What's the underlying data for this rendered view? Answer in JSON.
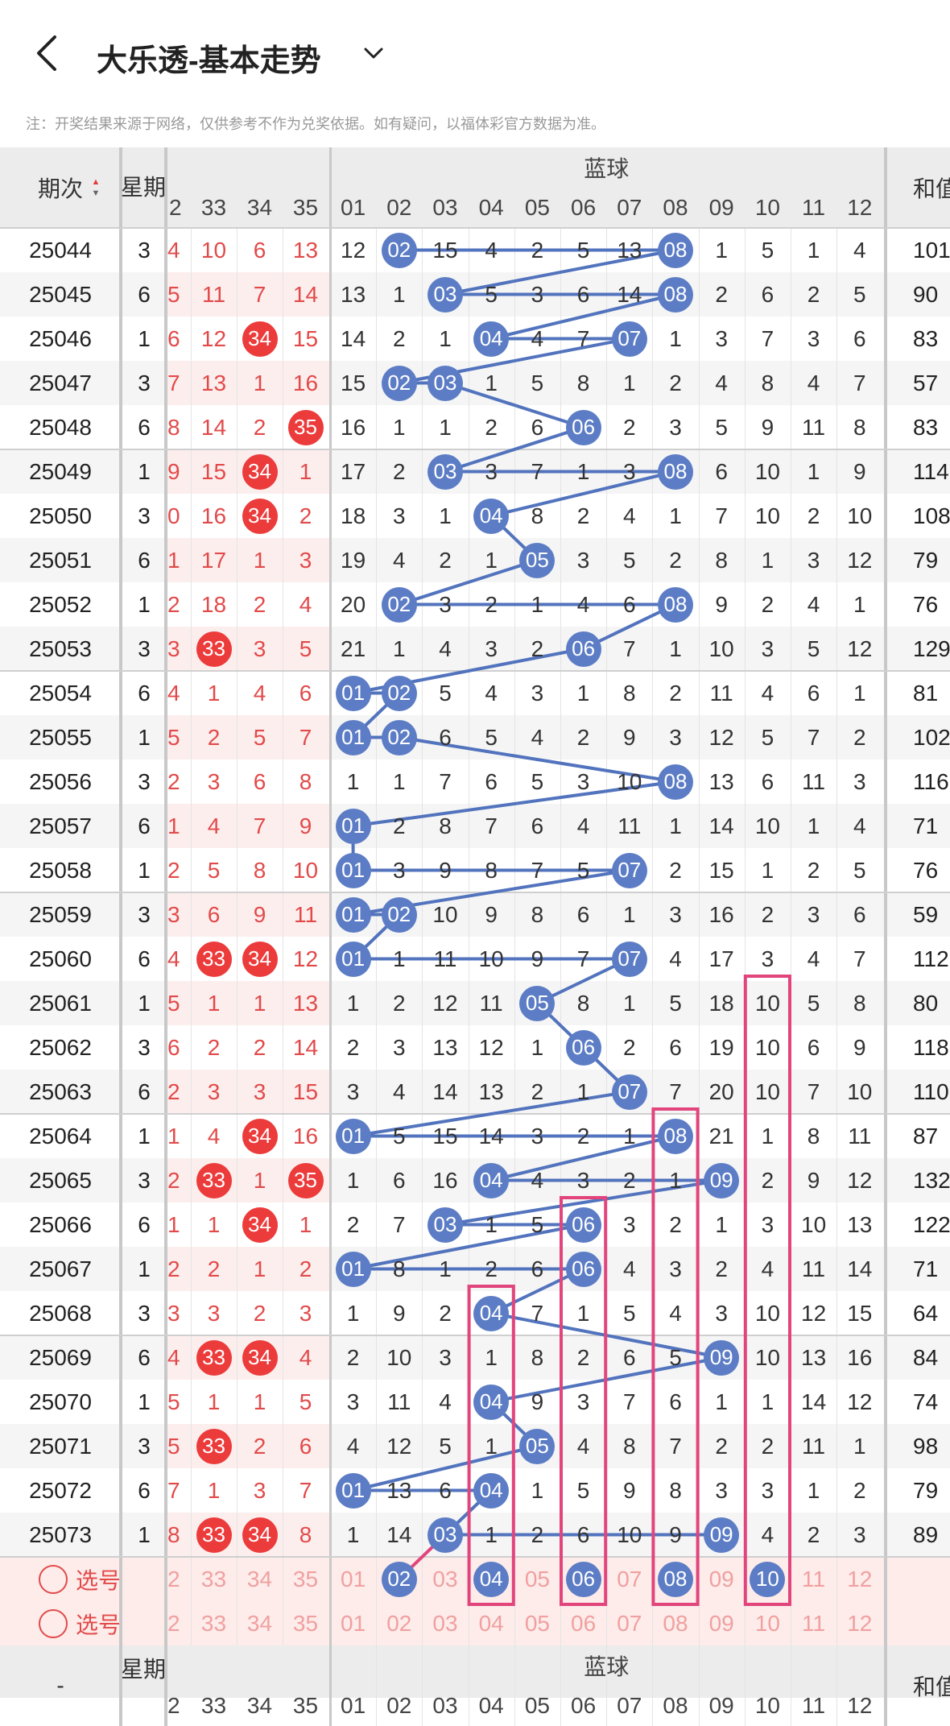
{
  "title": "大乐透-基本走势",
  "note": "注：开奖结果来源于网络，仅供参考不作为兑奖依据。如有疑问，以福体彩官方数据为准。",
  "headers": {
    "period": "期次",
    "weekday": "星期",
    "blue_group": "蓝球",
    "sum": "和值",
    "red_cols": [
      "2",
      "33",
      "34",
      "35"
    ],
    "blue_cols": [
      "01",
      "02",
      "03",
      "04",
      "05",
      "06",
      "07",
      "08",
      "09",
      "10",
      "11",
      "12"
    ]
  },
  "rows": [
    {
      "period": "25044",
      "week": "3",
      "red": [
        "4",
        "10",
        "6",
        "13"
      ],
      "blue": [
        "12",
        "02",
        "15",
        "4",
        "2",
        "5",
        "13",
        "08",
        "1",
        "5",
        "1",
        "4"
      ],
      "sum": "101"
    },
    {
      "period": "25045",
      "week": "6",
      "red": [
        "5",
        "11",
        "7",
        "14"
      ],
      "blue": [
        "13",
        "1",
        "03",
        "5",
        "3",
        "6",
        "14",
        "08",
        "2",
        "6",
        "2",
        "5"
      ],
      "sum": "90"
    },
    {
      "period": "25046",
      "week": "1",
      "red": [
        "6",
        "12",
        "34",
        "15"
      ],
      "blue": [
        "14",
        "2",
        "1",
        "04",
        "4",
        "7",
        "07",
        "1",
        "3",
        "7",
        "3",
        "6"
      ],
      "sum": "83"
    },
    {
      "period": "25047",
      "week": "3",
      "red": [
        "7",
        "13",
        "1",
        "16"
      ],
      "blue": [
        "15",
        "02",
        "03",
        "1",
        "5",
        "8",
        "1",
        "2",
        "4",
        "8",
        "4",
        "7"
      ],
      "sum": "57"
    },
    {
      "period": "25048",
      "week": "6",
      "red": [
        "8",
        "14",
        "2",
        "35"
      ],
      "blue": [
        "16",
        "1",
        "1",
        "2",
        "6",
        "06",
        "2",
        "3",
        "5",
        "9",
        "11",
        "8"
      ],
      "sum": "83"
    },
    {
      "period": "25049",
      "week": "1",
      "red": [
        "9",
        "15",
        "34",
        "1"
      ],
      "blue": [
        "17",
        "2",
        "03",
        "3",
        "7",
        "1",
        "3",
        "08",
        "6",
        "10",
        "1",
        "9"
      ],
      "sum": "114"
    },
    {
      "period": "25050",
      "week": "3",
      "red": [
        "0",
        "16",
        "34",
        "2"
      ],
      "blue": [
        "18",
        "3",
        "1",
        "04",
        "8",
        "2",
        "4",
        "1",
        "7",
        "10",
        "2",
        "10"
      ],
      "sum": "108"
    },
    {
      "period": "25051",
      "week": "6",
      "red": [
        "1",
        "17",
        "1",
        "3"
      ],
      "blue": [
        "19",
        "4",
        "2",
        "1",
        "05",
        "3",
        "5",
        "2",
        "8",
        "1",
        "3",
        "12"
      ],
      "sum": "79"
    },
    {
      "period": "25052",
      "week": "1",
      "red": [
        "2",
        "18",
        "2",
        "4"
      ],
      "blue": [
        "20",
        "02",
        "3",
        "2",
        "1",
        "4",
        "6",
        "08",
        "9",
        "2",
        "4",
        "1"
      ],
      "sum": "76"
    },
    {
      "period": "25053",
      "week": "3",
      "red": [
        "3",
        "33",
        "3",
        "5"
      ],
      "blue": [
        "21",
        "1",
        "4",
        "3",
        "2",
        "06",
        "7",
        "1",
        "10",
        "3",
        "5",
        "12"
      ],
      "sum": "129"
    },
    {
      "period": "25054",
      "week": "6",
      "red": [
        "4",
        "1",
        "4",
        "6"
      ],
      "blue": [
        "01",
        "02",
        "5",
        "4",
        "3",
        "1",
        "8",
        "2",
        "11",
        "4",
        "6",
        "1"
      ],
      "sum": "81"
    },
    {
      "period": "25055",
      "week": "1",
      "red": [
        "5",
        "2",
        "5",
        "7"
      ],
      "blue": [
        "01",
        "02",
        "6",
        "5",
        "4",
        "2",
        "9",
        "3",
        "12",
        "5",
        "7",
        "2"
      ],
      "sum": "102"
    },
    {
      "period": "25056",
      "week": "3",
      "red": [
        "2",
        "3",
        "6",
        "8"
      ],
      "blue": [
        "1",
        "1",
        "7",
        "6",
        "5",
        "3",
        "10",
        "08",
        "13",
        "6",
        "11",
        "3"
      ],
      "sum": "116"
    },
    {
      "period": "25057",
      "week": "6",
      "red": [
        "1",
        "4",
        "7",
        "9"
      ],
      "blue": [
        "01",
        "2",
        "8",
        "7",
        "6",
        "4",
        "11",
        "1",
        "14",
        "10",
        "1",
        "4"
      ],
      "sum": "71"
    },
    {
      "period": "25058",
      "week": "1",
      "red": [
        "2",
        "5",
        "8",
        "10"
      ],
      "blue": [
        "01",
        "3",
        "9",
        "8",
        "7",
        "5",
        "07",
        "2",
        "15",
        "1",
        "2",
        "5"
      ],
      "sum": "76"
    },
    {
      "period": "25059",
      "week": "3",
      "red": [
        "3",
        "6",
        "9",
        "11"
      ],
      "blue": [
        "01",
        "02",
        "10",
        "9",
        "8",
        "6",
        "1",
        "3",
        "16",
        "2",
        "3",
        "6"
      ],
      "sum": "59"
    },
    {
      "period": "25060",
      "week": "6",
      "red": [
        "4",
        "33",
        "34",
        "12"
      ],
      "blue": [
        "01",
        "1",
        "11",
        "10",
        "9",
        "7",
        "07",
        "4",
        "17",
        "3",
        "4",
        "7"
      ],
      "sum": "112"
    },
    {
      "period": "25061",
      "week": "1",
      "red": [
        "5",
        "1",
        "1",
        "13"
      ],
      "blue": [
        "1",
        "2",
        "12",
        "11",
        "05",
        "8",
        "1",
        "5",
        "18",
        "10",
        "5",
        "8"
      ],
      "sum": "80"
    },
    {
      "period": "25062",
      "week": "3",
      "red": [
        "6",
        "2",
        "2",
        "14"
      ],
      "blue": [
        "2",
        "3",
        "13",
        "12",
        "1",
        "06",
        "2",
        "6",
        "19",
        "10",
        "6",
        "9"
      ],
      "sum": "118"
    },
    {
      "period": "25063",
      "week": "6",
      "red": [
        "2",
        "3",
        "3",
        "15"
      ],
      "blue": [
        "3",
        "4",
        "14",
        "13",
        "2",
        "1",
        "07",
        "7",
        "20",
        "10",
        "7",
        "10"
      ],
      "sum": "110"
    },
    {
      "period": "25064",
      "week": "1",
      "red": [
        "1",
        "4",
        "34",
        "16"
      ],
      "blue": [
        "01",
        "5",
        "15",
        "14",
        "3",
        "2",
        "1",
        "08",
        "21",
        "1",
        "8",
        "11"
      ],
      "sum": "87"
    },
    {
      "period": "25065",
      "week": "3",
      "red": [
        "2",
        "33",
        "1",
        "35"
      ],
      "blue": [
        "1",
        "6",
        "16",
        "04",
        "4",
        "3",
        "2",
        "1",
        "09",
        "2",
        "9",
        "12"
      ],
      "sum": "132"
    },
    {
      "period": "25066",
      "week": "6",
      "red": [
        "1",
        "1",
        "34",
        "1"
      ],
      "blue": [
        "2",
        "7",
        "03",
        "1",
        "5",
        "06",
        "3",
        "2",
        "1",
        "3",
        "10",
        "13"
      ],
      "sum": "122"
    },
    {
      "period": "25067",
      "week": "1",
      "red": [
        "2",
        "2",
        "1",
        "2"
      ],
      "blue": [
        "01",
        "8",
        "1",
        "2",
        "6",
        "06",
        "4",
        "3",
        "2",
        "4",
        "11",
        "14"
      ],
      "sum": "71"
    },
    {
      "period": "25068",
      "week": "3",
      "red": [
        "3",
        "3",
        "2",
        "3"
      ],
      "blue": [
        "1",
        "9",
        "2",
        "04",
        "7",
        "1",
        "5",
        "4",
        "3",
        "10",
        "12",
        "15"
      ],
      "sum": "64"
    },
    {
      "period": "25069",
      "week": "6",
      "red": [
        "4",
        "33",
        "34",
        "4"
      ],
      "blue": [
        "2",
        "10",
        "3",
        "1",
        "8",
        "2",
        "6",
        "5",
        "09",
        "10",
        "13",
        "16"
      ],
      "sum": "84"
    },
    {
      "period": "25070",
      "week": "1",
      "red": [
        "5",
        "1",
        "1",
        "5"
      ],
      "blue": [
        "3",
        "11",
        "4",
        "04",
        "9",
        "3",
        "7",
        "6",
        "1",
        "1",
        "14",
        "12"
      ],
      "sum": "74"
    },
    {
      "period": "25071",
      "week": "3",
      "red": [
        "5",
        "33",
        "2",
        "6"
      ],
      "blue": [
        "4",
        "12",
        "5",
        "1",
        "05",
        "4",
        "8",
        "7",
        "2",
        "2",
        "11",
        "1"
      ],
      "sum": "98"
    },
    {
      "period": "25072",
      "week": "6",
      "red": [
        "7",
        "1",
        "3",
        "7"
      ],
      "blue": [
        "01",
        "13",
        "6",
        "04",
        "1",
        "5",
        "9",
        "8",
        "3",
        "3",
        "1",
        "2"
      ],
      "sum": "79"
    },
    {
      "period": "25073",
      "week": "1",
      "red": [
        "8",
        "33",
        "34",
        "8"
      ],
      "blue": [
        "1",
        "14",
        "03",
        "1",
        "2",
        "6",
        "10",
        "9",
        "09",
        "4",
        "2",
        "3"
      ],
      "sum": "89"
    }
  ],
  "pick_rows": [
    {
      "label": "选号",
      "red": [
        "2",
        "33",
        "34",
        "35"
      ],
      "blue": [
        "01",
        "02",
        "03",
        "04",
        "05",
        "06",
        "07",
        "08",
        "09",
        "10",
        "11",
        "12"
      ]
    },
    {
      "label": "选号",
      "red": [
        "2",
        "33",
        "34",
        "35"
      ],
      "blue": [
        "01",
        "02",
        "03",
        "04",
        "05",
        "06",
        "07",
        "08",
        "09",
        "10",
        "11",
        "12"
      ]
    }
  ],
  "footer": {
    "period": "-",
    "weekday": "星期",
    "blue_group": "蓝球",
    "sum": "和值",
    "red_cols": [
      "2",
      "33",
      "34",
      "35"
    ],
    "blue_cols": [
      "01",
      "02",
      "03",
      "04",
      "05",
      "06",
      "07",
      "08",
      "09",
      "10",
      "11",
      "12"
    ]
  },
  "colors": {
    "red_ball": "#ec3b3b",
    "blue_ball": "#5c7dc5",
    "red_text": "#e24a4a",
    "blue_link": "#5273bd",
    "highlight": "#e2457c",
    "header_bg": "#ececec",
    "pick_bg": "#fdecea"
  }
}
